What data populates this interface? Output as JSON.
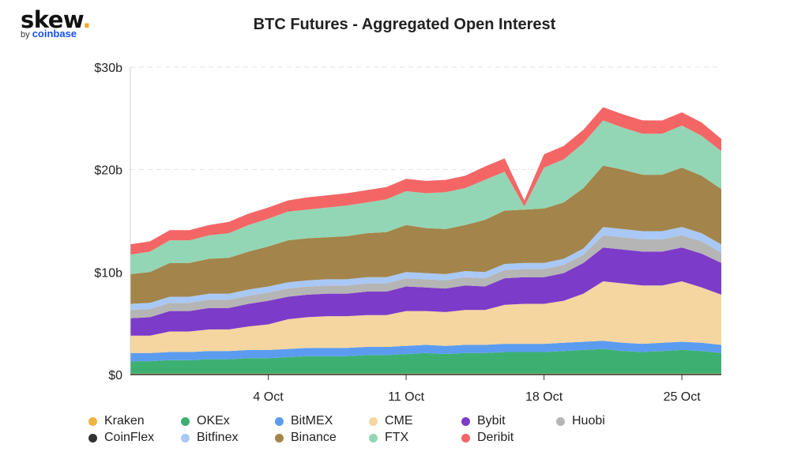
{
  "brand": {
    "name": "skew",
    "dot": ".",
    "by": "by",
    "parent": "coinbase"
  },
  "chart_data": {
    "type": "area",
    "stacked": true,
    "title": "BTC Futures - Aggregated Open Interest",
    "xlabel": "",
    "ylabel": "",
    "ylim": [
      0,
      30
    ],
    "y_ticks": [
      0,
      10,
      20,
      30
    ],
    "y_tick_labels": [
      "$0",
      "$10b",
      "$20b",
      "$30b"
    ],
    "x_day_range": [
      27,
      57
    ],
    "x_ticks": [
      34,
      41,
      48,
      55
    ],
    "x_tick_labels": [
      "4 Oct",
      "11 Oct",
      "18 Oct",
      "25 Oct"
    ],
    "grid": true,
    "legend_position": "bottom",
    "x": [
      27,
      28,
      29,
      30,
      31,
      32,
      33,
      34,
      35,
      36,
      37,
      38,
      39,
      40,
      41,
      42,
      43,
      44,
      45,
      46,
      47,
      48,
      49,
      50,
      51,
      52,
      53,
      54,
      55,
      56,
      57
    ],
    "series": [
      {
        "name": "Kraken",
        "color": "#f0b33d",
        "values": [
          0.1,
          0.1,
          0.1,
          0.1,
          0.1,
          0.1,
          0.1,
          0.1,
          0.1,
          0.1,
          0.1,
          0.1,
          0.1,
          0.1,
          0.1,
          0.1,
          0.1,
          0.1,
          0.1,
          0.1,
          0.1,
          0.1,
          0.1,
          0.1,
          0.1,
          0.1,
          0.1,
          0.1,
          0.1,
          0.1,
          0.1
        ]
      },
      {
        "name": "OKEx",
        "color": "#3db071",
        "values": [
          1.2,
          1.2,
          1.3,
          1.3,
          1.4,
          1.4,
          1.5,
          1.5,
          1.6,
          1.7,
          1.7,
          1.7,
          1.8,
          1.8,
          1.9,
          2.0,
          1.9,
          2.0,
          2.0,
          2.1,
          2.1,
          2.1,
          2.2,
          2.3,
          2.4,
          2.2,
          2.1,
          2.2,
          2.3,
          2.2,
          2.0
        ]
      },
      {
        "name": "BitMEX",
        "color": "#5b9cf0",
        "values": [
          0.8,
          0.8,
          0.8,
          0.8,
          0.8,
          0.8,
          0.8,
          0.8,
          0.8,
          0.8,
          0.8,
          0.8,
          0.8,
          0.8,
          0.8,
          0.8,
          0.8,
          0.8,
          0.8,
          0.8,
          0.8,
          0.8,
          0.8,
          0.8,
          0.8,
          0.8,
          0.8,
          0.8,
          0.8,
          0.8,
          0.8
        ]
      },
      {
        "name": "CME",
        "color": "#f5d5a0",
        "values": [
          1.7,
          1.7,
          2.0,
          2.0,
          2.1,
          2.1,
          2.3,
          2.5,
          2.9,
          3.0,
          3.1,
          3.1,
          3.1,
          3.1,
          3.4,
          3.3,
          3.3,
          3.4,
          3.4,
          3.8,
          3.9,
          3.9,
          4.1,
          4.7,
          5.8,
          5.8,
          5.7,
          5.6,
          5.9,
          5.4,
          4.9
        ]
      },
      {
        "name": "Bybit",
        "color": "#7d3bc9",
        "values": [
          1.7,
          1.8,
          2.0,
          2.0,
          2.1,
          2.1,
          2.2,
          2.3,
          2.2,
          2.2,
          2.2,
          2.2,
          2.3,
          2.3,
          2.4,
          2.3,
          2.3,
          2.4,
          2.3,
          2.6,
          2.6,
          2.6,
          2.7,
          3.0,
          3.3,
          3.3,
          3.3,
          3.3,
          3.3,
          3.3,
          3.1
        ]
      },
      {
        "name": "Huobi",
        "color": "#b5b5b5",
        "values": [
          0.8,
          0.8,
          0.8,
          0.8,
          0.8,
          0.8,
          0.8,
          0.8,
          0.8,
          0.8,
          0.8,
          0.8,
          0.8,
          0.8,
          0.8,
          0.8,
          0.8,
          0.8,
          0.8,
          0.8,
          0.8,
          0.8,
          0.8,
          0.8,
          1.2,
          1.2,
          1.2,
          1.2,
          1.2,
          1.2,
          1.0
        ]
      },
      {
        "name": "CoinFlex",
        "color": "#333333",
        "values": [
          0,
          0,
          0,
          0,
          0,
          0,
          0,
          0,
          0,
          0,
          0,
          0,
          0,
          0,
          0,
          0,
          0,
          0,
          0,
          0,
          0,
          0,
          0,
          0,
          0,
          0,
          0,
          0,
          0,
          0,
          0
        ]
      },
      {
        "name": "Bitfinex",
        "color": "#a9c8f5",
        "values": [
          0.6,
          0.6,
          0.6,
          0.6,
          0.6,
          0.6,
          0.6,
          0.6,
          0.6,
          0.6,
          0.6,
          0.6,
          0.6,
          0.6,
          0.6,
          0.6,
          0.6,
          0.6,
          0.6,
          0.6,
          0.6,
          0.6,
          0.6,
          0.6,
          0.8,
          0.8,
          0.8,
          0.8,
          0.8,
          0.8,
          0.8
        ]
      },
      {
        "name": "Binance",
        "color": "#a3844a",
        "values": [
          2.9,
          3.0,
          3.3,
          3.3,
          3.4,
          3.5,
          3.7,
          3.9,
          4.1,
          4.1,
          4.1,
          4.2,
          4.3,
          4.4,
          4.6,
          4.4,
          4.4,
          4.5,
          5.1,
          5.2,
          5.2,
          5.3,
          5.5,
          5.9,
          6.0,
          5.8,
          5.5,
          5.5,
          5.8,
          5.6,
          5.4
        ]
      },
      {
        "name": "FTX",
        "color": "#93d6b5",
        "values": [
          1.9,
          2.0,
          2.2,
          2.2,
          2.3,
          2.4,
          2.6,
          2.7,
          2.8,
          2.8,
          2.9,
          3.0,
          3.0,
          3.2,
          3.3,
          3.4,
          3.6,
          3.6,
          3.9,
          3.8,
          0.3,
          4.0,
          4.2,
          4.4,
          4.4,
          4.1,
          4.0,
          4.0,
          4.1,
          3.9,
          3.7
        ]
      },
      {
        "name": "Deribit",
        "color": "#f46666",
        "values": [
          1.0,
          1.0,
          1.0,
          1.0,
          1.0,
          1.1,
          1.1,
          1.1,
          1.1,
          1.2,
          1.2,
          1.2,
          1.2,
          1.2,
          1.2,
          1.2,
          1.2,
          1.2,
          1.3,
          1.3,
          0.6,
          1.3,
          1.3,
          1.3,
          1.3,
          1.3,
          1.3,
          1.3,
          1.3,
          1.3,
          1.2
        ]
      }
    ]
  }
}
